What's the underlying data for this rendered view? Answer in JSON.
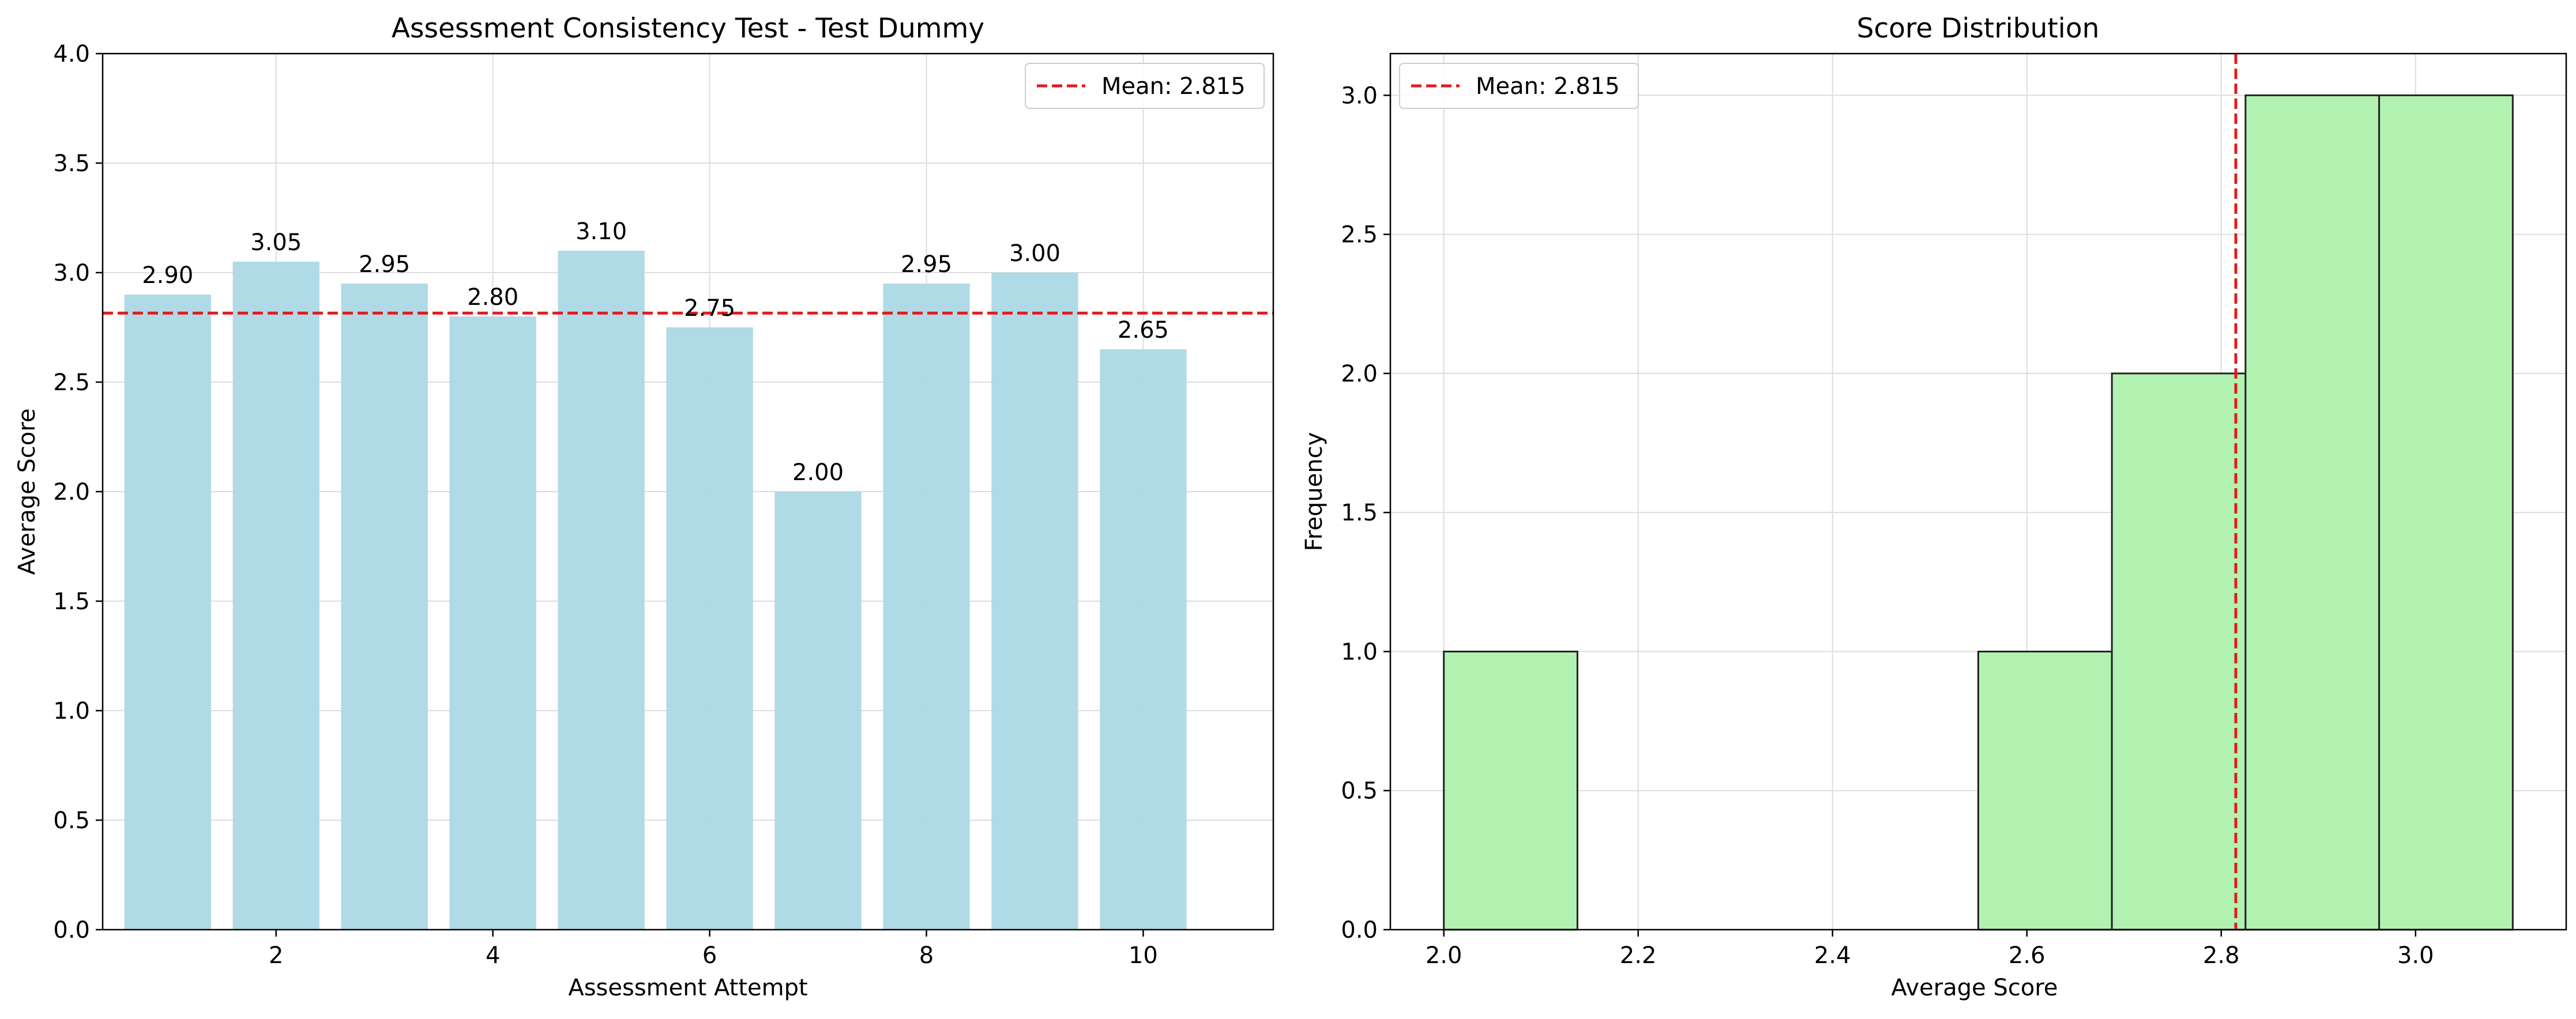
{
  "chart_data": [
    {
      "type": "bar",
      "title": "Assessment Consistency Test - Test Dummy",
      "xlabel": "Assessment Attempt",
      "ylabel": "Average Score",
      "categories": [
        1,
        2,
        3,
        4,
        5,
        6,
        7,
        8,
        9,
        10
      ],
      "values": [
        2.9,
        3.05,
        2.95,
        2.8,
        3.1,
        2.75,
        2.0,
        2.95,
        3.0,
        2.65
      ],
      "value_labels": [
        "2.90",
        "3.05",
        "2.95",
        "2.80",
        "3.10",
        "2.75",
        "2.00",
        "2.95",
        "3.00",
        "2.65"
      ],
      "xlim": [
        0.4,
        11.2
      ],
      "ylim": [
        0,
        4.0
      ],
      "xticks": [
        2,
        4,
        6,
        8,
        10
      ],
      "xtick_labels": [
        "2",
        "4",
        "6",
        "8",
        "10"
      ],
      "yticks": [
        0,
        0.5,
        1.0,
        1.5,
        2.0,
        2.5,
        3.0,
        3.5,
        4.0
      ],
      "ytick_labels": [
        "0.0",
        "0.5",
        "1.0",
        "1.5",
        "2.0",
        "2.5",
        "3.0",
        "3.5",
        "4.0"
      ],
      "bar_color": "#add8e6",
      "mean": {
        "value": 2.815,
        "label": "Mean: 2.815",
        "color": "#e41a1c",
        "orientation": "horizontal"
      },
      "grid": true,
      "legend": {
        "position": "upper-right",
        "entries": [
          "Mean: 2.815"
        ]
      }
    },
    {
      "type": "histogram",
      "title": "Score Distribution",
      "xlabel": "Average Score",
      "ylabel": "Frequency",
      "bins": [
        {
          "x0": 2.0,
          "x1": 2.1375,
          "count": 1
        },
        {
          "x0": 2.1375,
          "x1": 2.275,
          "count": 0
        },
        {
          "x0": 2.275,
          "x1": 2.4125,
          "count": 0
        },
        {
          "x0": 2.4125,
          "x1": 2.55,
          "count": 0
        },
        {
          "x0": 2.55,
          "x1": 2.6875,
          "count": 1
        },
        {
          "x0": 2.6875,
          "x1": 2.825,
          "count": 2
        },
        {
          "x0": 2.825,
          "x1": 2.9625,
          "count": 3
        },
        {
          "x0": 2.9625,
          "x1": 3.1,
          "count": 3
        }
      ],
      "xlim": [
        1.945,
        3.155
      ],
      "ylim": [
        0,
        3.15
      ],
      "xticks": [
        2.0,
        2.2,
        2.4,
        2.6,
        2.8,
        3.0
      ],
      "xtick_labels": [
        "2.0",
        "2.2",
        "2.4",
        "2.6",
        "2.8",
        "3.0"
      ],
      "yticks": [
        0,
        0.5,
        1.0,
        1.5,
        2.0,
        2.5,
        3.0
      ],
      "ytick_labels": [
        "0.0",
        "0.5",
        "1.0",
        "1.5",
        "2.0",
        "2.5",
        "3.0"
      ],
      "bar_color": "#b2f2b0",
      "edge_color": "#222222",
      "mean": {
        "value": 2.815,
        "label": "Mean: 2.815",
        "color": "#e41a1c",
        "orientation": "vertical"
      },
      "grid": true,
      "legend": {
        "position": "upper-left",
        "entries": [
          "Mean: 2.815"
        ]
      }
    }
  ]
}
